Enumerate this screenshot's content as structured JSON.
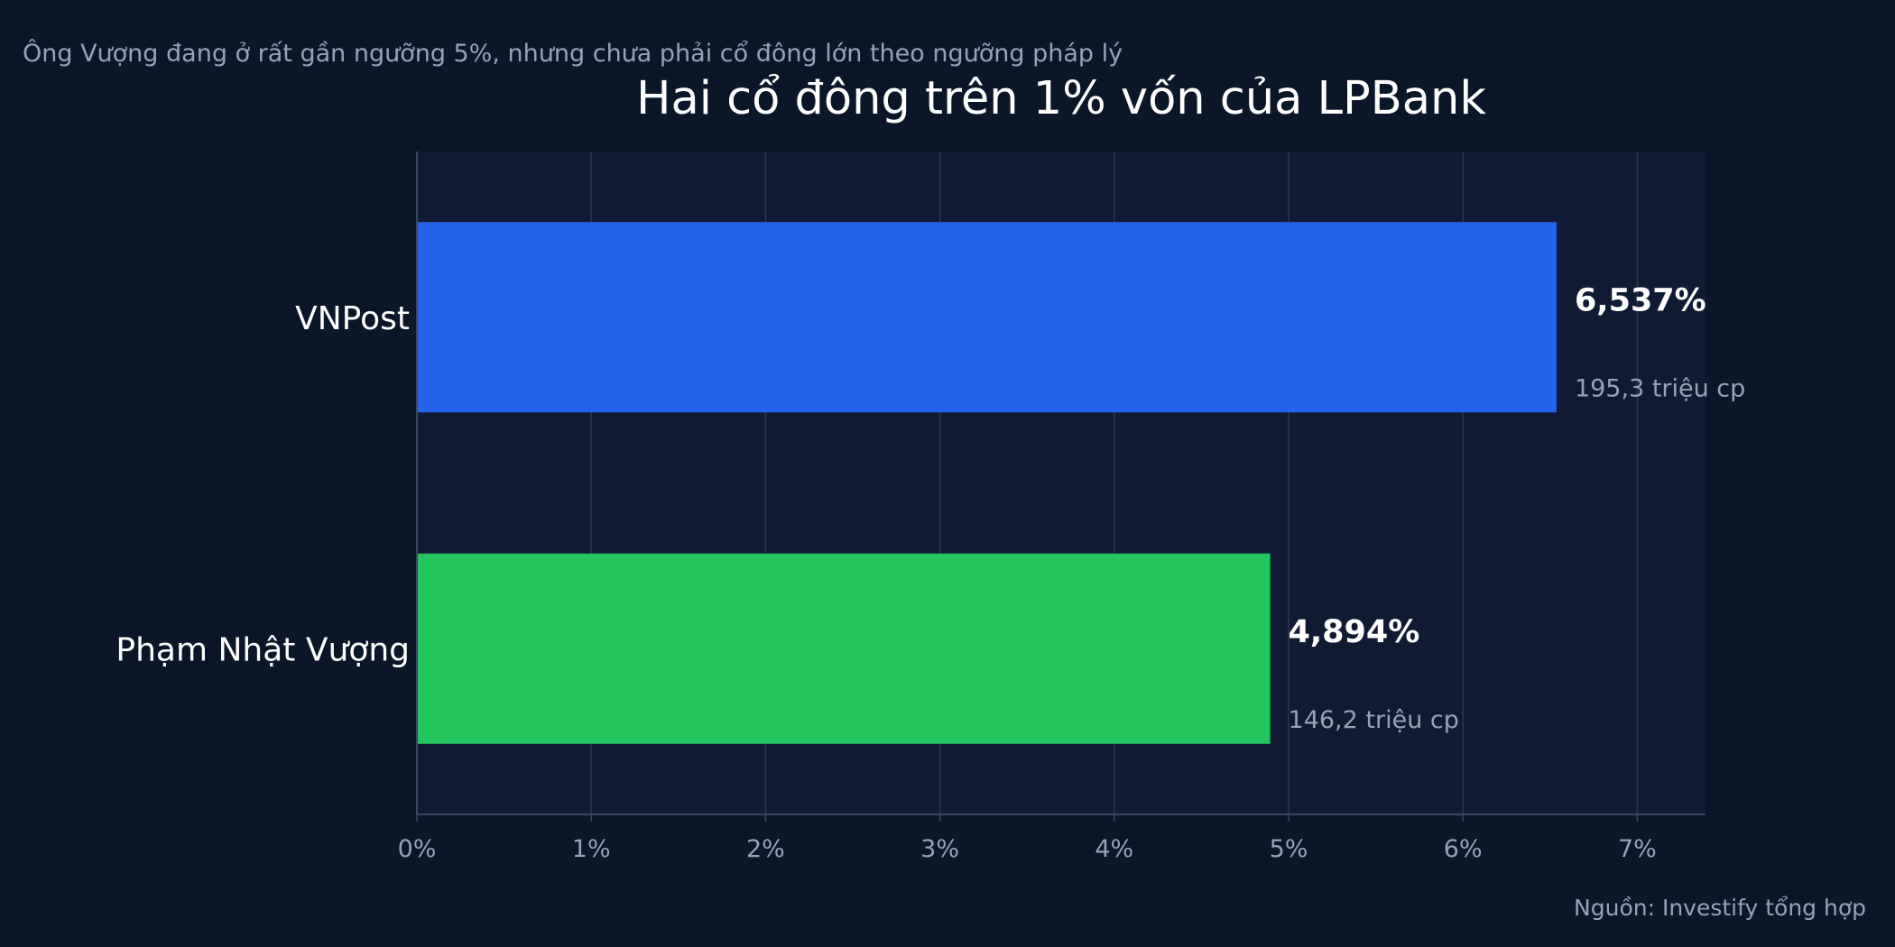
{
  "subtitle": "Ông Vượng đang ở rất gần ngưỡng 5%, nhưng chưa phải cổ đông lớn theo ngưỡng pháp lý",
  "source": "Nguồn: Investify tổng hợp",
  "colors": {
    "background": "#0b1628",
    "plot_background": "#101b33",
    "grid": "#2a3650",
    "axis": "#3b4760",
    "tick_text": "#94a3b8",
    "label_text": "#ffffff"
  },
  "chart_data": {
    "type": "bar",
    "orientation": "horizontal",
    "title": "Hai cổ đông trên 1% vốn của LPBank",
    "xlabel": "",
    "ylabel": "",
    "xlim": [
      0,
      7.4
    ],
    "x_ticks": [
      0,
      1,
      2,
      3,
      4,
      5,
      6,
      7
    ],
    "x_tick_labels": [
      "0%",
      "1%",
      "2%",
      "3%",
      "4%",
      "5%",
      "6%",
      "7%"
    ],
    "grid": "vertical",
    "categories": [
      "VNPost",
      "Phạm Nhật Vượng"
    ],
    "values": [
      6.537,
      4.894
    ],
    "value_labels": [
      "6,537%",
      "4,894%"
    ],
    "secondary_labels": [
      "195,3 triệu cp",
      "146,2 triệu cp"
    ],
    "bar_colors": [
      "#2563eb",
      "#22c55e"
    ]
  }
}
